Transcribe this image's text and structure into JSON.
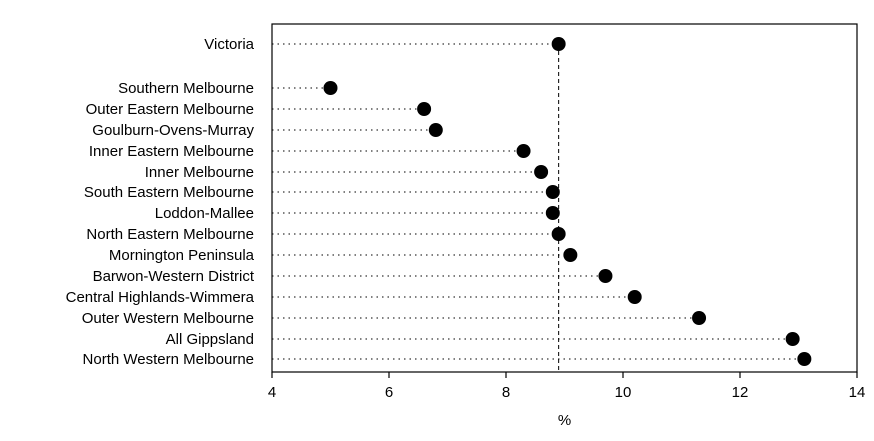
{
  "chart_data": {
    "type": "dot",
    "categories": [
      "Victoria",
      "Southern Melbourne",
      "Outer Eastern Melbourne",
      "Goulburn-Ovens-Murray",
      "Inner Eastern Melbourne",
      "Inner Melbourne",
      "South Eastern Melbourne",
      "Loddon-Mallee",
      "North Eastern Melbourne",
      "Mornington Peninsula",
      "Barwon-Western District",
      "Central Highlands-Wimmera",
      "Outer Western Melbourne",
      "All Gippsland",
      "North Western Melbourne"
    ],
    "values": [
      8.9,
      5.0,
      6.6,
      6.8,
      8.3,
      8.6,
      8.8,
      8.8,
      8.9,
      9.1,
      9.7,
      10.2,
      11.3,
      12.9,
      13.1
    ],
    "reference_value": 8.9,
    "xlabel": "%",
    "xlim": [
      4,
      14
    ],
    "xticks": [
      "4",
      "6",
      "8",
      "10",
      "12",
      "14"
    ],
    "grid": false,
    "colors": {
      "marker": "#000000",
      "frame": "#000000",
      "background": "#ffffff"
    }
  }
}
